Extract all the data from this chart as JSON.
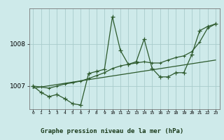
{
  "title": "Graphe pression niveau de la mer (hPa)",
  "bg_color": "#ceeaea",
  "grid_color": "#a8cccc",
  "line_color": "#2d5a2d",
  "x_labels": [
    "0",
    "1",
    "2",
    "3",
    "4",
    "5",
    "6",
    "7",
    "8",
    "9",
    "10",
    "11",
    "12",
    "13",
    "14",
    "15",
    "16",
    "17",
    "18",
    "19",
    "20",
    "21",
    "22",
    "23"
  ],
  "yticks": [
    1007,
    1008
  ],
  "ylim": [
    1006.45,
    1008.85
  ],
  "xlim": [
    -0.5,
    23.5
  ],
  "main_data": [
    1007.0,
    1006.85,
    1006.75,
    1006.8,
    1006.7,
    1006.58,
    1006.55,
    1007.3,
    1007.35,
    1007.4,
    1008.65,
    1007.85,
    1007.52,
    1007.58,
    1008.12,
    1007.42,
    1007.22,
    1007.22,
    1007.32,
    1007.32,
    1007.75,
    1008.32,
    1008.42,
    1008.48
  ],
  "trend_data_x": [
    0,
    23
  ],
  "trend_data_y": [
    1006.95,
    1007.62
  ],
  "smooth_data": [
    1007.0,
    1006.98,
    1006.95,
    1007.0,
    1007.05,
    1007.08,
    1007.12,
    1007.18,
    1007.25,
    1007.32,
    1007.42,
    1007.48,
    1007.52,
    1007.55,
    1007.58,
    1007.55,
    1007.55,
    1007.62,
    1007.68,
    1007.72,
    1007.82,
    1008.05,
    1008.38,
    1008.48
  ]
}
